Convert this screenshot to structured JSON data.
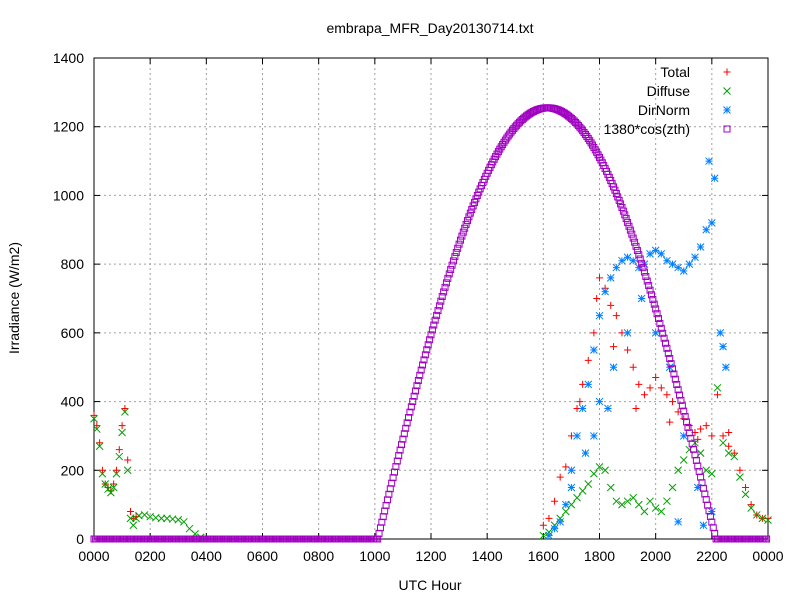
{
  "chart_data": {
    "type": "scatter",
    "title": "embrapa_MFR_Day20130714.txt",
    "xlabel": "UTC Hour",
    "ylabel": "Irradiance (W/m2)",
    "xlim": [
      0,
      24
    ],
    "ylim": [
      0,
      1400
    ],
    "grid": true,
    "legend_position": "top-right",
    "x_ticks": [
      {
        "value": 0,
        "label": "0000"
      },
      {
        "value": 2,
        "label": "0200"
      },
      {
        "value": 4,
        "label": "0400"
      },
      {
        "value": 6,
        "label": "0600"
      },
      {
        "value": 8,
        "label": "0800"
      },
      {
        "value": 10,
        "label": "1000"
      },
      {
        "value": 12,
        "label": "1200"
      },
      {
        "value": 14,
        "label": "1400"
      },
      {
        "value": 16,
        "label": "1600"
      },
      {
        "value": 18,
        "label": "1800"
      },
      {
        "value": 20,
        "label": "2000"
      },
      {
        "value": 22,
        "label": "2200"
      },
      {
        "value": 24,
        "label": "0000"
      }
    ],
    "y_ticks": [
      0,
      200,
      400,
      600,
      800,
      1000,
      1200,
      1400
    ],
    "series": [
      {
        "name": "Total",
        "marker": "plus",
        "color": "#ff0000",
        "points": [
          [
            0.0,
            360
          ],
          [
            0.1,
            330
          ],
          [
            0.2,
            280
          ],
          [
            0.3,
            200
          ],
          [
            0.4,
            160
          ],
          [
            0.5,
            150
          ],
          [
            0.6,
            140
          ],
          [
            0.7,
            160
          ],
          [
            0.8,
            200
          ],
          [
            0.9,
            260
          ],
          [
            1.0,
            330
          ],
          [
            1.1,
            380
          ],
          [
            1.2,
            230
          ],
          [
            1.3,
            80
          ],
          [
            1.4,
            60
          ],
          [
            1.5,
            65
          ],
          [
            16.0,
            40
          ],
          [
            16.2,
            60
          ],
          [
            16.4,
            110
          ],
          [
            16.6,
            180
          ],
          [
            16.8,
            210
          ],
          [
            17.0,
            300
          ],
          [
            17.2,
            380
          ],
          [
            17.4,
            450
          ],
          [
            17.6,
            520
          ],
          [
            17.8,
            600
          ],
          [
            17.9,
            700
          ],
          [
            18.0,
            760
          ],
          [
            18.2,
            730
          ],
          [
            18.4,
            680
          ],
          [
            18.6,
            650
          ],
          [
            18.8,
            600
          ],
          [
            19.0,
            550
          ],
          [
            19.2,
            500
          ],
          [
            19.4,
            450
          ],
          [
            19.6,
            420
          ],
          [
            19.8,
            440
          ],
          [
            20.0,
            470
          ],
          [
            20.2,
            440
          ],
          [
            20.4,
            420
          ],
          [
            20.6,
            400
          ],
          [
            20.8,
            370
          ],
          [
            21.0,
            350
          ],
          [
            21.2,
            330
          ],
          [
            21.4,
            310
          ],
          [
            21.6,
            320
          ],
          [
            21.8,
            330
          ],
          [
            22.0,
            300
          ],
          [
            22.2,
            420
          ],
          [
            22.4,
            300
          ],
          [
            22.6,
            270
          ],
          [
            22.8,
            250
          ],
          [
            23.0,
            200
          ],
          [
            23.2,
            150
          ],
          [
            23.4,
            100
          ],
          [
            23.6,
            70
          ],
          [
            23.8,
            60
          ],
          [
            24.0,
            60
          ],
          [
            17.3,
            400
          ],
          [
            18.5,
            560
          ],
          [
            19.3,
            380
          ],
          [
            20.5,
            340
          ],
          [
            21.5,
            290
          ],
          [
            22.6,
            310
          ]
        ]
      },
      {
        "name": "Diffuse",
        "marker": "cross",
        "color": "#00a000",
        "points": [
          [
            0.0,
            350
          ],
          [
            0.1,
            320
          ],
          [
            0.2,
            270
          ],
          [
            0.3,
            190
          ],
          [
            0.4,
            160
          ],
          [
            0.5,
            145
          ],
          [
            0.6,
            135
          ],
          [
            0.7,
            150
          ],
          [
            0.8,
            190
          ],
          [
            0.9,
            240
          ],
          [
            1.0,
            310
          ],
          [
            1.1,
            370
          ],
          [
            1.2,
            200
          ],
          [
            1.3,
            60
          ],
          [
            1.4,
            40
          ],
          [
            1.5,
            60
          ],
          [
            1.6,
            68
          ],
          [
            1.8,
            70
          ],
          [
            2.0,
            65
          ],
          [
            2.2,
            62
          ],
          [
            2.4,
            60
          ],
          [
            2.6,
            60
          ],
          [
            2.8,
            58
          ],
          [
            3.0,
            56
          ],
          [
            3.2,
            50
          ],
          [
            3.4,
            30
          ],
          [
            3.6,
            15
          ],
          [
            3.8,
            5
          ],
          [
            16.0,
            10
          ],
          [
            16.2,
            20
          ],
          [
            16.4,
            40
          ],
          [
            16.6,
            60
          ],
          [
            16.8,
            80
          ],
          [
            17.0,
            100
          ],
          [
            17.2,
            120
          ],
          [
            17.4,
            140
          ],
          [
            17.6,
            160
          ],
          [
            17.8,
            190
          ],
          [
            18.0,
            210
          ],
          [
            18.2,
            200
          ],
          [
            18.4,
            150
          ],
          [
            18.6,
            110
          ],
          [
            18.8,
            100
          ],
          [
            19.0,
            110
          ],
          [
            19.2,
            120
          ],
          [
            19.4,
            100
          ],
          [
            19.6,
            80
          ],
          [
            19.8,
            110
          ],
          [
            20.0,
            90
          ],
          [
            20.2,
            80
          ],
          [
            20.4,
            110
          ],
          [
            20.6,
            150
          ],
          [
            20.8,
            200
          ],
          [
            21.0,
            230
          ],
          [
            21.2,
            260
          ],
          [
            21.4,
            280
          ],
          [
            21.6,
            250
          ],
          [
            21.8,
            200
          ],
          [
            22.0,
            190
          ],
          [
            22.2,
            440
          ],
          [
            22.4,
            280
          ],
          [
            22.6,
            250
          ],
          [
            22.8,
            240
          ],
          [
            23.0,
            180
          ],
          [
            23.2,
            130
          ],
          [
            23.4,
            90
          ],
          [
            23.6,
            70
          ],
          [
            23.8,
            60
          ],
          [
            24.0,
            55
          ]
        ]
      },
      {
        "name": "DirNorm",
        "marker": "star",
        "color": "#0080ff",
        "points": [
          [
            16.2,
            10
          ],
          [
            16.4,
            30
          ],
          [
            16.6,
            50
          ],
          [
            16.8,
            100
          ],
          [
            17.0,
            200
          ],
          [
            17.2,
            300
          ],
          [
            17.4,
            380
          ],
          [
            17.6,
            450
          ],
          [
            17.8,
            550
          ],
          [
            18.0,
            650
          ],
          [
            18.2,
            720
          ],
          [
            18.4,
            760
          ],
          [
            18.6,
            790
          ],
          [
            18.8,
            810
          ],
          [
            19.0,
            820
          ],
          [
            19.2,
            810
          ],
          [
            19.4,
            790
          ],
          [
            19.6,
            800
          ],
          [
            19.8,
            830
          ],
          [
            20.0,
            840
          ],
          [
            20.2,
            830
          ],
          [
            20.4,
            810
          ],
          [
            20.6,
            800
          ],
          [
            20.8,
            790
          ],
          [
            21.0,
            780
          ],
          [
            21.2,
            800
          ],
          [
            21.4,
            820
          ],
          [
            21.6,
            850
          ],
          [
            21.8,
            900
          ],
          [
            22.0,
            920
          ],
          [
            21.9,
            1100
          ],
          [
            22.1,
            1050
          ],
          [
            17.0,
            150
          ],
          [
            17.5,
            250
          ],
          [
            18.0,
            400
          ],
          [
            18.5,
            500
          ],
          [
            19.0,
            600
          ],
          [
            19.5,
            700
          ],
          [
            20.0,
            600
          ],
          [
            20.5,
            500
          ],
          [
            21.0,
            300
          ],
          [
            21.5,
            150
          ],
          [
            22.0,
            80
          ],
          [
            20.8,
            50
          ],
          [
            21.7,
            40
          ],
          [
            22.3,
            600
          ],
          [
            22.4,
            560
          ],
          [
            22.5,
            500
          ],
          [
            17.8,
            300
          ],
          [
            18.3,
            380
          ]
        ]
      },
      {
        "name": "1380*cos(zth)",
        "marker": "square",
        "color": "#a000c0",
        "curve": {
          "baseline_x": [
            0,
            24
          ],
          "rise": 10.1,
          "set": 22.15,
          "peak_x": 16.15,
          "peak_y": 1255,
          "step": 0.05
        }
      }
    ]
  }
}
